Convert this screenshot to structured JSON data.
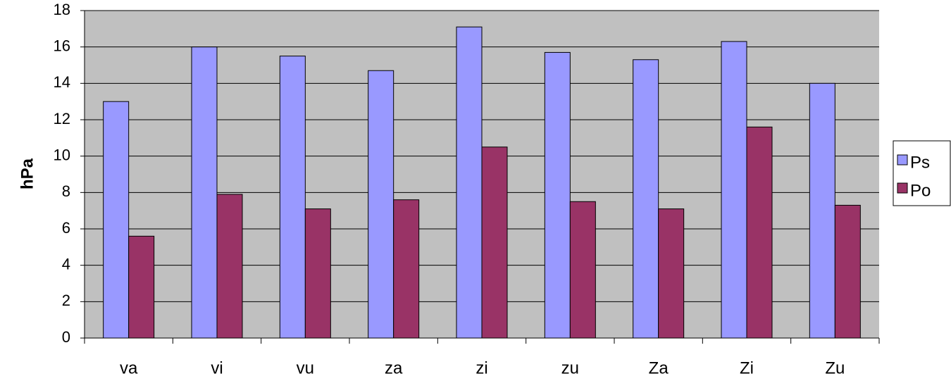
{
  "chart_data": {
    "type": "bar",
    "y_label": "hPa",
    "categories": [
      "va",
      "vi",
      "vu",
      "za",
      "zi",
      "zu",
      "Za",
      "Zi",
      "Zu"
    ],
    "series": [
      {
        "name": "Ps",
        "color": "#9999ff",
        "values": [
          13.0,
          16.0,
          15.5,
          14.7,
          17.1,
          15.7,
          15.3,
          16.3,
          14.0
        ]
      },
      {
        "name": "Po",
        "color": "#993366",
        "values": [
          5.6,
          7.9,
          7.1,
          7.6,
          10.5,
          7.5,
          7.1,
          11.6,
          7.3
        ]
      }
    ],
    "ylim": [
      0,
      18
    ],
    "yticks": [
      0,
      2,
      4,
      6,
      8,
      10,
      12,
      14,
      16,
      18
    ],
    "grid": true,
    "legend": "right"
  }
}
